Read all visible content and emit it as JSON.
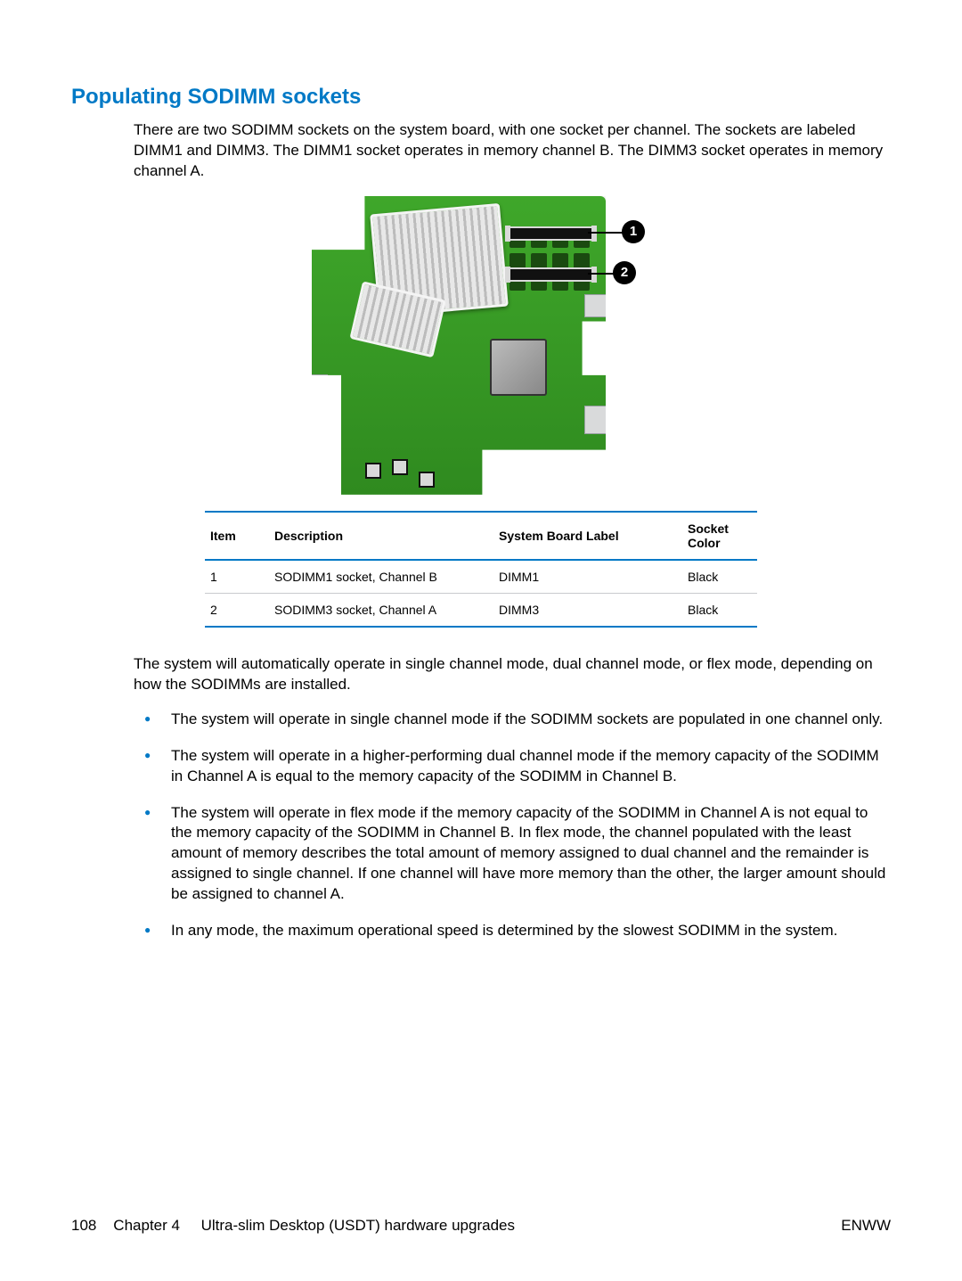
{
  "colors": {
    "heading": "#0079c6",
    "bullet": "#0079c6",
    "table_rule": "#0079c6",
    "board_top": "#3fa72a",
    "board_bottom": "#2f8a1f",
    "text": "#000000",
    "background": "#ffffff"
  },
  "heading": "Populating SODIMM sockets",
  "intro": "There are two SODIMM sockets on the system board, with one socket per channel. The sockets are labeled DIMM1 and DIMM3. The DIMM1 socket operates in memory channel B. The DIMM3 socket operates in memory channel A.",
  "callouts": {
    "one": "1",
    "two": "2"
  },
  "table": {
    "headers": {
      "item": "Item",
      "description": "Description",
      "label": "System Board Label",
      "color": "Socket Color"
    },
    "rows": [
      {
        "item": "1",
        "description": "SODIMM1 socket, Channel B",
        "label": "DIMM1",
        "color": "Black"
      },
      {
        "item": "2",
        "description": "SODIMM3 socket, Channel A",
        "label": "DIMM3",
        "color": "Black"
      }
    ]
  },
  "post_table": "The system will automatically operate in single channel mode, dual channel mode, or flex mode, depending on how the SODIMMs are installed.",
  "bullets": [
    "The system will operate in single channel mode if the SODIMM sockets are populated in one channel only.",
    "The system will operate in a higher-performing dual channel mode if the memory capacity of the SODIMM in Channel A is equal to the memory capacity of the SODIMM in Channel B.",
    "The system will operate in flex mode if the memory capacity of the SODIMM in Channel A is not equal to the memory capacity of the SODIMM in Channel B. In flex mode, the channel populated with the least amount of memory describes the total amount of memory assigned to dual channel and the remainder is assigned to single channel. If one channel will have more memory than the other, the larger amount should be assigned to channel A.",
    "In any mode, the maximum operational speed is determined by the slowest SODIMM in the system."
  ],
  "footer": {
    "page_number": "108",
    "chapter_label": "Chapter 4",
    "chapter_title": "Ultra-slim Desktop (USDT) hardware upgrades",
    "right": "ENWW"
  }
}
